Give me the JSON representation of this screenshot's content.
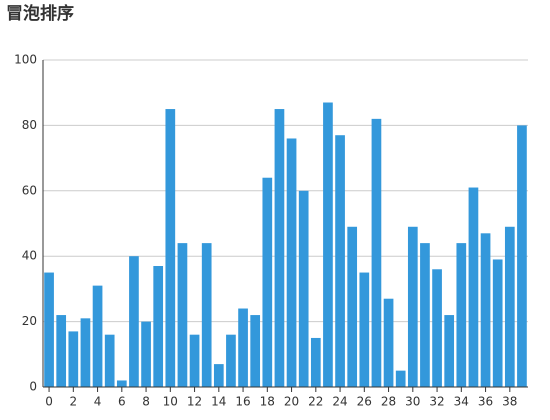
{
  "chart_data": {
    "type": "bar",
    "title": "冒泡排序",
    "categories": [
      "0",
      null,
      "2",
      null,
      "4",
      null,
      "6",
      null,
      "8",
      null,
      "10",
      null,
      "12",
      null,
      "14",
      null,
      "16",
      null,
      "18",
      null,
      "20",
      null,
      "22",
      null,
      "24",
      null,
      "26",
      null,
      "28",
      null,
      "30",
      null,
      "32",
      null,
      "34",
      null,
      "36",
      null,
      "38",
      null
    ],
    "values": [
      35,
      22,
      17,
      21,
      31,
      16,
      2,
      40,
      20,
      37,
      85,
      44,
      16,
      44,
      7,
      16,
      24,
      22,
      64,
      85,
      76,
      60,
      15,
      87,
      77,
      49,
      35,
      82,
      27,
      5,
      49,
      44,
      36,
      22,
      44,
      61,
      47,
      39,
      49,
      80
    ],
    "color": "#3398db",
    "ylim": [
      0,
      100
    ],
    "yticks": [
      0,
      20,
      40,
      60,
      80,
      100
    ],
    "grid": true
  }
}
